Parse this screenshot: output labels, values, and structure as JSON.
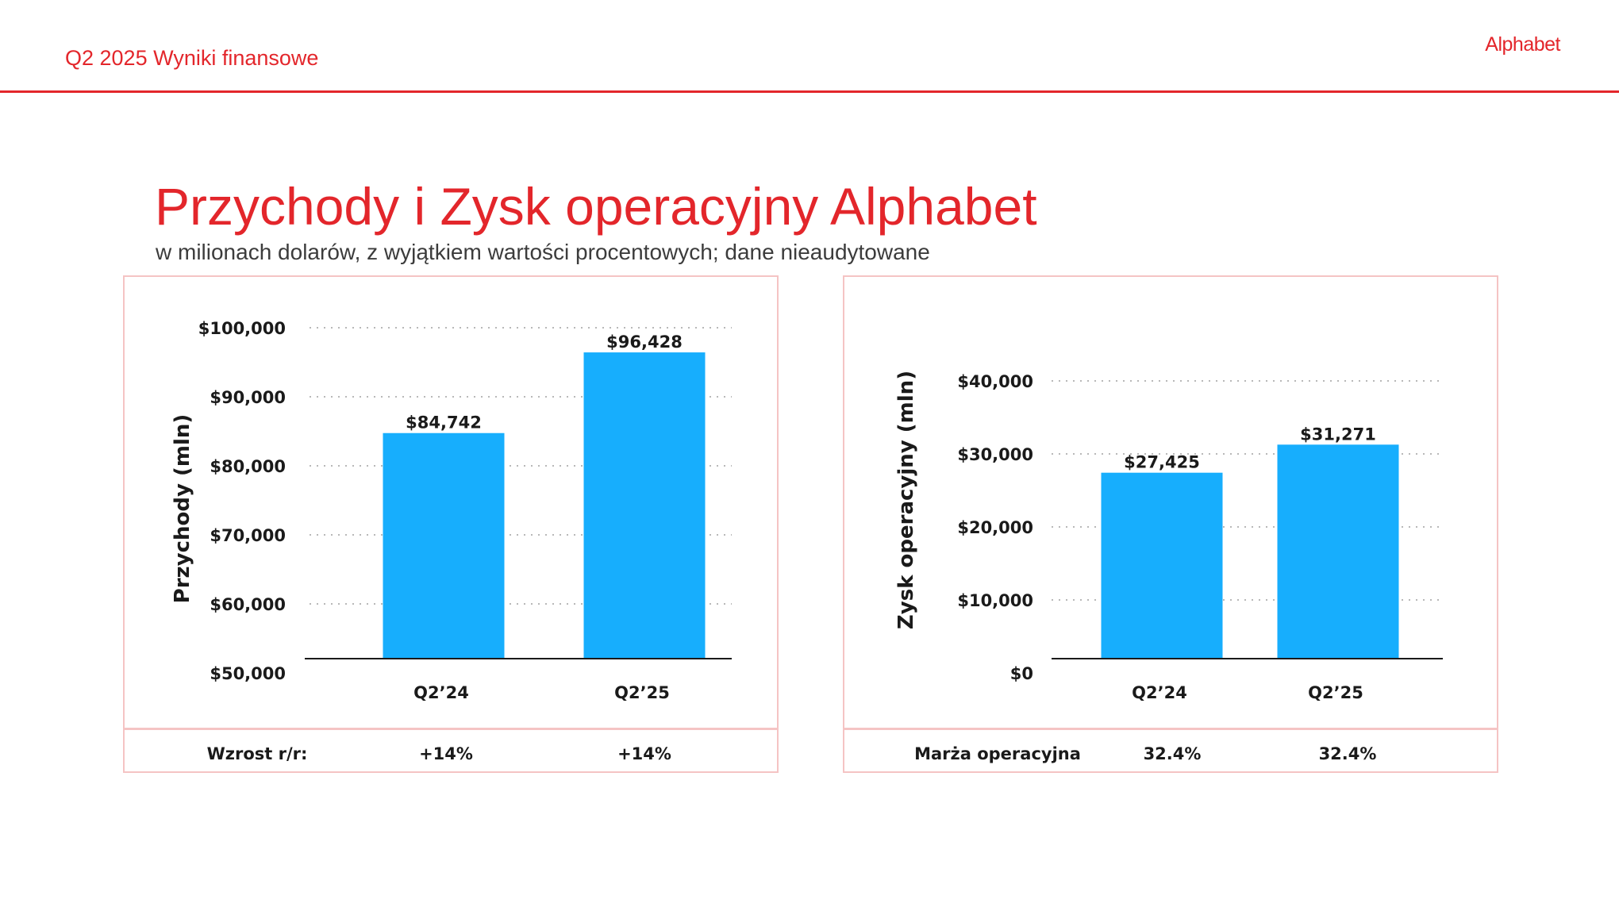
{
  "header": {
    "label": "Q2 2025 Wyniki finansowe",
    "brand": "Alphabet"
  },
  "title": "Przychody i Zysk operacyjny Alphabet",
  "subtitle": "w milionach dolarów, z wyjątkiem wartości procentowych; dane nieaudytowane",
  "colors": {
    "accent": "#e3262b",
    "bar": "#17aefd",
    "panel_border": "#f5c4c4"
  },
  "chart_data": [
    {
      "type": "bar",
      "categories": [
        "Q2’24",
        "Q2’25"
      ],
      "values": [
        84742,
        96428
      ],
      "value_labels": [
        "$84,742",
        "$96,428"
      ],
      "ylabel": "Przychody (mln)",
      "ylim": [
        50000,
        100000
      ],
      "yticks": [
        50000,
        60000,
        70000,
        80000,
        90000,
        100000
      ],
      "ytick_labels": [
        "$50,000",
        "$60,000",
        "$70,000",
        "$80,000",
        "$90,000",
        "$100,000"
      ],
      "grid": "dotted"
    },
    {
      "type": "bar",
      "categories": [
        "Q2’24",
        "Q2’25"
      ],
      "values": [
        27425,
        31271
      ],
      "value_labels": [
        "$27,425",
        "$31,271"
      ],
      "ylabel": "Zysk operacyjny  (mln)",
      "ylim": [
        0,
        40000
      ],
      "yticks": [
        0,
        10000,
        20000,
        30000,
        40000
      ],
      "ytick_labels": [
        "$0",
        "$10,000",
        "$20,000",
        "$30,000",
        "$40,000"
      ],
      "grid": "dotted"
    }
  ],
  "tables": {
    "left": {
      "label": "Wzrost r/r:",
      "values": [
        "+14%",
        "+14%"
      ]
    },
    "right": {
      "label": "Marża operacyjna",
      "values": [
        "32.4%",
        "32.4%"
      ]
    }
  }
}
